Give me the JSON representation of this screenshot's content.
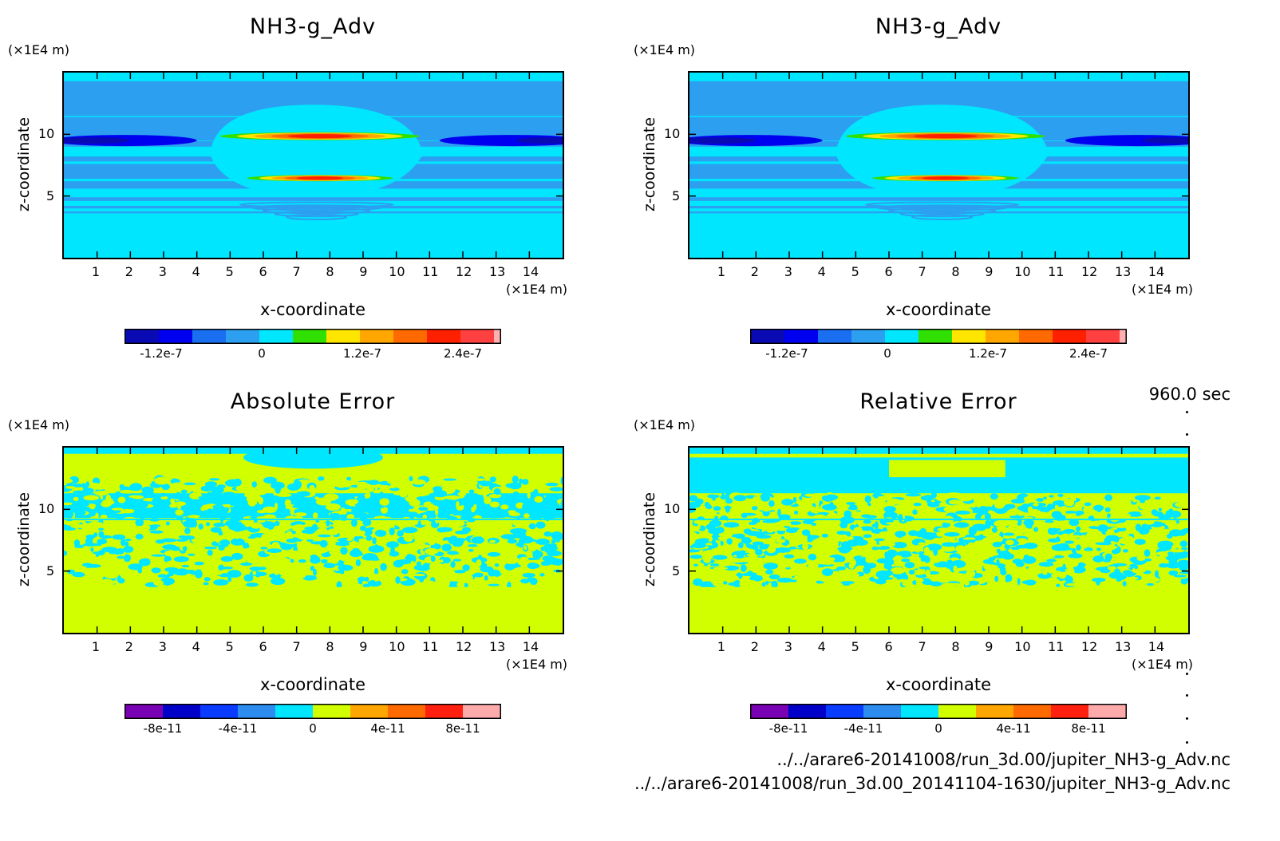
{
  "timestamp": "960.0 sec",
  "files": [
    "../../arare6-20141008/run_3d.00/jupiter_NH3-g_Adv.nc",
    "../../arare6-20141008/run_3d.00_20141104-1630/jupiter_NH3-g_Adv.nc"
  ],
  "axis_unit": "(×1E4 m)",
  "colors": {
    "field": [
      "#0a0ab4",
      "#0000f0",
      "#1a6ef0",
      "#2d9ff0",
      "#00e6ff",
      "#30e000",
      "#ffe600",
      "#ffa600",
      "#ff6a00",
      "#ff2000",
      "#ff4040",
      "#ffb0b0"
    ],
    "error": [
      "#7a00b4",
      "#0000c8",
      "#0a3cff",
      "#2d8cf0",
      "#00e6ff",
      "#d2ff00",
      "#ffa600",
      "#ff6a00",
      "#ff2010",
      "#ffaaaa"
    ]
  },
  "chart_data": [
    {
      "type": "heatmap",
      "title": "NH3-g_Adv",
      "xlabel": "x-coordinate",
      "ylabel": "z-coordinate",
      "x_unit": "(×1E4 m)",
      "y_unit": "(×1E4 m)",
      "xlim": [
        0,
        15
      ],
      "ylim": [
        0,
        15
      ],
      "xticks": [
        "1",
        "2",
        "3",
        "4",
        "5",
        "6",
        "7",
        "8",
        "9",
        "10",
        "11",
        "12",
        "13",
        "14"
      ],
      "yticks": [
        "5",
        "10"
      ],
      "colorbar_labels": [
        "-1.2e-7",
        "0",
        "1.2e-7",
        "2.4e-7"
      ],
      "colorbar_levels": 12
    },
    {
      "type": "heatmap",
      "title": "NH3-g_Adv",
      "xlabel": "x-coordinate",
      "ylabel": "z-coordinate",
      "x_unit": "(×1E4 m)",
      "y_unit": "(×1E4 m)",
      "xlim": [
        0,
        15
      ],
      "ylim": [
        0,
        15
      ],
      "xticks": [
        "1",
        "2",
        "3",
        "4",
        "5",
        "6",
        "7",
        "8",
        "9",
        "10",
        "11",
        "12",
        "13",
        "14"
      ],
      "yticks": [
        "5",
        "10"
      ],
      "colorbar_labels": [
        "-1.2e-7",
        "0",
        "1.2e-7",
        "2.4e-7"
      ],
      "colorbar_levels": 12
    },
    {
      "type": "heatmap",
      "title": "Absolute Error",
      "xlabel": "x-coordinate",
      "ylabel": "z-coordinate",
      "x_unit": "(×1E4 m)",
      "y_unit": "(×1E4 m)",
      "xlim": [
        0,
        15
      ],
      "ylim": [
        0,
        15
      ],
      "xticks": [
        "1",
        "2",
        "3",
        "4",
        "5",
        "6",
        "7",
        "8",
        "9",
        "10",
        "11",
        "12",
        "13",
        "14"
      ],
      "yticks": [
        "5",
        "10"
      ],
      "colorbar_labels": [
        "-8e-11",
        "-4e-11",
        "0",
        "4e-11",
        "8e-11"
      ],
      "colorbar_levels": 10
    },
    {
      "type": "heatmap",
      "title": "Relative Error",
      "xlabel": "x-coordinate",
      "ylabel": "z-coordinate",
      "x_unit": "(×1E4 m)",
      "y_unit": "(×1E4 m)",
      "xlim": [
        0,
        15
      ],
      "ylim": [
        0,
        15
      ],
      "xticks": [
        "1",
        "2",
        "3",
        "4",
        "5",
        "6",
        "7",
        "8",
        "9",
        "10",
        "11",
        "12",
        "13",
        "14"
      ],
      "yticks": [
        "5",
        "10"
      ],
      "colorbar_labels": [
        "-8e-11",
        "-4e-11",
        "0",
        "4e-11",
        "8e-11"
      ],
      "colorbar_levels": 10
    }
  ]
}
